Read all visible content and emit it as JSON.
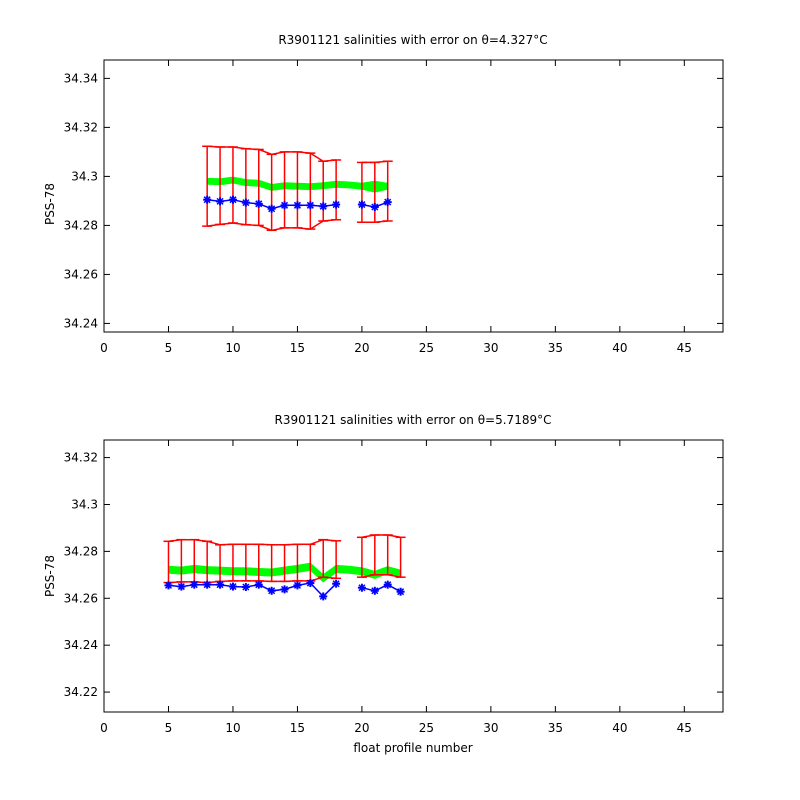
{
  "chart_data": [
    {
      "type": "scatter",
      "title": "R3901121 salinities with error on θ=4.327°C",
      "xlabel": "",
      "ylabel": "PSS-78",
      "xlim": [
        0,
        48
      ],
      "ylim": [
        34.2365,
        34.3475
      ],
      "xticks": [
        0,
        5,
        10,
        15,
        20,
        25,
        30,
        35,
        40,
        45
      ],
      "yticks": [
        34.24,
        34.26,
        34.28,
        34.3,
        34.32,
        34.34
      ],
      "ytick_labels": [
        "34.24",
        "34.26",
        "34.28",
        "34.3",
        "34.32",
        "34.34"
      ],
      "grid": false,
      "colors": {
        "float": "#0000ff",
        "error": "#ff0000",
        "band": "#00ff00"
      },
      "series": [
        {
          "x": [
            8,
            9,
            10,
            11,
            12,
            13,
            14,
            15,
            16,
            17,
            18,
            null,
            20,
            21,
            22
          ],
          "y": [
            34.2905,
            34.2898,
            34.2905,
            34.2893,
            34.2888,
            34.2868,
            34.2882,
            34.2882,
            34.2882,
            34.2878,
            34.2885,
            null,
            34.2885,
            34.2875,
            34.2895
          ]
        },
        {
          "x": [
            8,
            9,
            10,
            11,
            12,
            13,
            14,
            15,
            16,
            17,
            18,
            null,
            20,
            21,
            22
          ],
          "y": [
            34.296,
            34.2962,
            34.2965,
            34.2958,
            34.2955,
            34.2935,
            34.2945,
            34.2945,
            34.294,
            34.294,
            34.2945,
            null,
            34.2935,
            34.2935,
            34.294
          ],
          "err": [
            0.0163,
            0.0158,
            0.0155,
            0.0155,
            0.0155,
            0.0155,
            0.0155,
            0.0155,
            0.0155,
            0.0122,
            0.0122,
            null,
            0.0122,
            0.0122,
            0.0122
          ]
        },
        {
          "x": [
            8,
            9,
            10,
            11,
            12,
            13,
            14,
            15,
            16,
            17,
            18,
            19,
            20,
            21,
            22
          ],
          "y": [
            34.298,
            34.2978,
            34.2985,
            34.2975,
            34.2972,
            34.2955,
            34.2962,
            34.296,
            34.2958,
            34.2962,
            34.2968,
            34.2965,
            34.296,
            34.2958,
            34.296
          ],
          "halfwidth": [
            0.0012,
            0.0012,
            0.0012,
            0.0012,
            0.0012,
            0.0012,
            0.0012,
            0.0012,
            0.0012,
            0.0012,
            0.0012,
            0.0012,
            0.0012,
            0.0022,
            0.0012
          ]
        }
      ]
    },
    {
      "type": "scatter",
      "title": "R3901121 salinities with error on θ=5.7189°C",
      "xlabel": "float profile number",
      "ylabel": "PSS-78",
      "xlim": [
        0,
        48
      ],
      "ylim": [
        34.2115,
        34.3275
      ],
      "xticks": [
        0,
        5,
        10,
        15,
        20,
        25,
        30,
        35,
        40,
        45
      ],
      "yticks": [
        34.22,
        34.24,
        34.26,
        34.28,
        34.3,
        34.32
      ],
      "ytick_labels": [
        "34.22",
        "34.24",
        "34.26",
        "34.28",
        "34.3",
        "34.32"
      ],
      "grid": false,
      "colors": {
        "float": "#0000ff",
        "error": "#ff0000",
        "band": "#00ff00"
      },
      "series": [
        {
          "x": [
            5,
            6,
            7,
            8,
            9,
            10,
            11,
            12,
            13,
            14,
            15,
            16,
            17,
            18,
            null,
            20,
            21,
            22,
            23
          ],
          "y": [
            34.2655,
            34.265,
            34.2658,
            34.2658,
            34.2658,
            34.265,
            34.2648,
            34.2658,
            34.2632,
            34.2638,
            34.2655,
            34.2665,
            34.2608,
            34.2662,
            null,
            34.2645,
            34.2632,
            34.2658,
            34.2628
          ]
        },
        {
          "x": [
            5,
            6,
            7,
            8,
            9,
            10,
            11,
            12,
            13,
            14,
            15,
            16,
            17,
            18,
            null,
            20,
            21,
            22,
            23
          ],
          "y": [
            34.2755,
            34.276,
            34.276,
            34.2755,
            34.275,
            34.2752,
            34.2752,
            34.2752,
            34.275,
            34.275,
            34.2752,
            34.2752,
            34.277,
            34.2765,
            null,
            34.2775,
            34.2785,
            34.2785,
            34.2775
          ],
          "err": [
            0.0088,
            0.009,
            0.009,
            0.0088,
            0.0078,
            0.0078,
            0.0078,
            0.0078,
            0.0078,
            0.0078,
            0.0078,
            0.0078,
            0.008,
            0.008,
            null,
            0.0085,
            0.0085,
            0.0085,
            0.0085
          ]
        },
        {
          "x": [
            5,
            6,
            7,
            8,
            9,
            10,
            11,
            12,
            13,
            14,
            15,
            16,
            17,
            18,
            19,
            20,
            21,
            22,
            23
          ],
          "y": [
            34.2722,
            34.2718,
            34.2725,
            34.272,
            34.2718,
            34.2715,
            34.2715,
            34.2712,
            34.271,
            34.2718,
            34.2725,
            34.2735,
            34.2685,
            34.2725,
            34.2722,
            34.2715,
            34.27,
            34.272,
            34.2705
          ],
          "halfwidth": [
            0.0015,
            0.0015,
            0.0015,
            0.0015,
            0.0015,
            0.0015,
            0.0015,
            0.0015,
            0.0015,
            0.0015,
            0.0015,
            0.0015,
            0.0015,
            0.0015,
            0.0015,
            0.0015,
            0.0015,
            0.0015,
            0.0015
          ]
        }
      ]
    }
  ]
}
